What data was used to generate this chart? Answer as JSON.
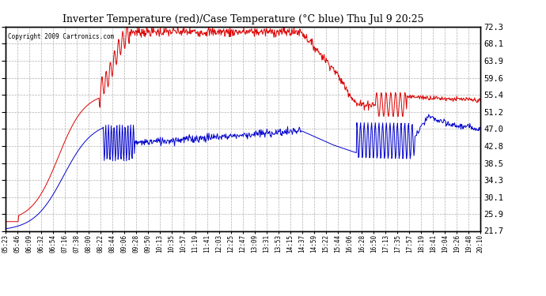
{
  "title": "Inverter Temperature (red)/Case Temperature (°C blue) Thu Jul 9 20:25",
  "copyright": "Copyright 2009 Cartronics.com",
  "ylabel_right_ticks": [
    21.7,
    25.9,
    30.1,
    34.3,
    38.5,
    42.8,
    47.0,
    51.2,
    55.4,
    59.6,
    63.9,
    68.1,
    72.3
  ],
  "ylim": [
    21.7,
    72.3
  ],
  "bg_color": "#ffffff",
  "plot_bg_color": "#ffffff",
  "grid_color": "#b0b0b0",
  "red_color": "#dd0000",
  "blue_color": "#0000cc",
  "n_points": 900,
  "x_tick_labels": [
    "05:23",
    "05:46",
    "06:09",
    "06:32",
    "06:54",
    "07:16",
    "07:38",
    "08:00",
    "08:22",
    "08:44",
    "09:06",
    "09:28",
    "09:50",
    "10:13",
    "10:35",
    "10:57",
    "11:19",
    "11:41",
    "12:03",
    "12:25",
    "12:47",
    "13:09",
    "13:31",
    "13:53",
    "14:15",
    "14:37",
    "14:59",
    "15:22",
    "15:44",
    "16:06",
    "16:28",
    "16:50",
    "17:13",
    "17:35",
    "17:57",
    "18:19",
    "18:41",
    "19:04",
    "19:26",
    "19:48",
    "20:10"
  ]
}
